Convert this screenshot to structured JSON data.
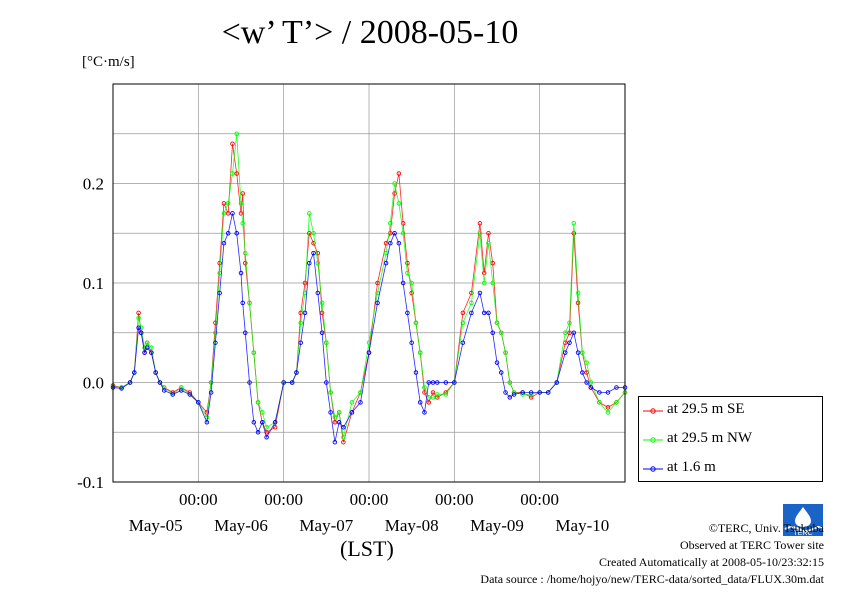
{
  "title": "<w’ T’> / 2008-05-10",
  "unit_label": "[°C·m/s]",
  "x_unit_label": "(LST)",
  "credits": {
    "copyright": "©TERC, Univ. Tsukuba",
    "observed": "Observed at TERC Tower site",
    "created": "Created Automatically at 2008-05-10/23:32:15",
    "source": "Data source : /home/hojyo/new/TERC-data/sorted_data/FLUX.30m.dat"
  },
  "logo_text": "TERC",
  "chart_data": {
    "type": "line",
    "title": "<w’ T’> / 2008-05-10",
    "ylabel": "[°C·m/s]",
    "xlabel": "(LST)",
    "ylim": [
      -0.1,
      0.3
    ],
    "xlim": [
      0,
      6
    ],
    "x_unit": "days from May-05 00:00 LST",
    "yticks": [
      -0.1,
      0.0,
      0.1,
      0.2
    ],
    "ytick_labels": [
      "-0.1",
      "0.0",
      "0.1",
      "0.2"
    ],
    "xticks": [
      1,
      2,
      3,
      4,
      5
    ],
    "xtick_time_labels": [
      "00:00",
      "00:00",
      "00:00",
      "00:00",
      "00:00"
    ],
    "date_labels": [
      {
        "x": 0.5,
        "label": "May-05"
      },
      {
        "x": 1.5,
        "label": "May-06"
      },
      {
        "x": 2.5,
        "label": "May-07"
      },
      {
        "x": 3.5,
        "label": "May-08"
      },
      {
        "x": 4.5,
        "label": "May-09"
      },
      {
        "x": 5.5,
        "label": "May-10"
      }
    ],
    "grid": true,
    "legend_position": "right-bottom outside",
    "series": [
      {
        "name": "at 29.5 m SE",
        "color": "#ff0000",
        "x": [
          0.0,
          0.1,
          0.2,
          0.25,
          0.3,
          0.33,
          0.37,
          0.4,
          0.45,
          0.5,
          0.55,
          0.6,
          0.7,
          0.8,
          0.9,
          1.0,
          1.1,
          1.15,
          1.2,
          1.25,
          1.3,
          1.35,
          1.4,
          1.45,
          1.5,
          1.52,
          1.55,
          1.6,
          1.65,
          1.7,
          1.75,
          1.8,
          1.9,
          2.0,
          2.1,
          2.15,
          2.2,
          2.25,
          2.3,
          2.35,
          2.4,
          2.45,
          2.5,
          2.55,
          2.6,
          2.65,
          2.7,
          2.8,
          2.9,
          3.0,
          3.1,
          3.2,
          3.25,
          3.3,
          3.35,
          3.4,
          3.45,
          3.5,
          3.55,
          3.6,
          3.65,
          3.7,
          3.75,
          3.8,
          3.9,
          4.0,
          4.1,
          4.2,
          4.3,
          4.35,
          4.4,
          4.45,
          4.5,
          4.55,
          4.6,
          4.65,
          4.7,
          4.8,
          4.9,
          5.0,
          5.1,
          5.2,
          5.3,
          5.35,
          5.4,
          5.45,
          5.5,
          5.55,
          5.6,
          5.7,
          5.8,
          5.9,
          6.0
        ],
        "y": [
          -0.003,
          -0.005,
          0.0,
          0.01,
          0.07,
          0.05,
          0.03,
          0.04,
          0.03,
          0.01,
          0.0,
          -0.005,
          -0.01,
          -0.005,
          -0.01,
          -0.02,
          -0.03,
          0.0,
          0.06,
          0.12,
          0.18,
          0.17,
          0.24,
          0.21,
          0.17,
          0.19,
          0.12,
          0.08,
          0.03,
          -0.02,
          -0.04,
          -0.05,
          -0.045,
          0.0,
          0.0,
          0.01,
          0.07,
          0.1,
          0.15,
          0.14,
          0.13,
          0.07,
          0.04,
          -0.01,
          -0.04,
          -0.03,
          -0.06,
          -0.03,
          -0.01,
          0.03,
          0.1,
          0.14,
          0.15,
          0.19,
          0.21,
          0.16,
          0.12,
          0.09,
          0.06,
          0.03,
          -0.01,
          -0.02,
          -0.01,
          -0.015,
          -0.01,
          0.0,
          0.07,
          0.09,
          0.16,
          0.11,
          0.15,
          0.12,
          0.06,
          0.05,
          0.03,
          0.0,
          -0.01,
          -0.01,
          -0.015,
          -0.01,
          -0.01,
          0.0,
          0.04,
          0.05,
          0.15,
          0.08,
          0.03,
          0.01,
          -0.005,
          -0.02,
          -0.025,
          -0.02,
          -0.01
        ]
      },
      {
        "name": "at 29.5 m NW",
        "color": "#00ff00",
        "x": [
          0.0,
          0.1,
          0.2,
          0.25,
          0.3,
          0.33,
          0.37,
          0.4,
          0.45,
          0.5,
          0.55,
          0.6,
          0.7,
          0.8,
          0.9,
          1.0,
          1.1,
          1.15,
          1.2,
          1.25,
          1.3,
          1.35,
          1.4,
          1.45,
          1.5,
          1.52,
          1.55,
          1.6,
          1.65,
          1.7,
          1.75,
          1.8,
          1.9,
          2.0,
          2.1,
          2.15,
          2.2,
          2.25,
          2.3,
          2.35,
          2.4,
          2.45,
          2.5,
          2.55,
          2.6,
          2.65,
          2.7,
          2.8,
          2.9,
          3.0,
          3.1,
          3.2,
          3.25,
          3.3,
          3.35,
          3.4,
          3.45,
          3.5,
          3.55,
          3.6,
          3.65,
          3.7,
          3.75,
          3.8,
          3.9,
          4.0,
          4.1,
          4.2,
          4.3,
          4.35,
          4.4,
          4.45,
          4.5,
          4.55,
          4.6,
          4.65,
          4.7,
          4.8,
          4.9,
          5.0,
          5.1,
          5.2,
          5.3,
          5.35,
          5.4,
          5.45,
          5.5,
          5.55,
          5.6,
          5.7,
          5.8,
          5.9,
          6.0
        ],
        "y": [
          -0.004,
          -0.005,
          0.0,
          0.01,
          0.065,
          0.055,
          0.035,
          0.04,
          0.035,
          0.01,
          0.0,
          -0.005,
          -0.012,
          -0.005,
          -0.012,
          -0.02,
          -0.035,
          0.0,
          0.05,
          0.11,
          0.17,
          0.18,
          0.21,
          0.25,
          0.18,
          0.16,
          0.13,
          0.08,
          0.03,
          -0.02,
          -0.03,
          -0.045,
          -0.04,
          0.0,
          0.0,
          0.01,
          0.06,
          0.09,
          0.17,
          0.15,
          0.12,
          0.08,
          0.04,
          -0.01,
          -0.035,
          -0.03,
          -0.055,
          -0.02,
          -0.01,
          0.04,
          0.09,
          0.13,
          0.16,
          0.2,
          0.18,
          0.15,
          0.11,
          0.1,
          0.06,
          0.03,
          -0.005,
          -0.015,
          -0.015,
          -0.012,
          -0.012,
          0.0,
          0.06,
          0.08,
          0.15,
          0.1,
          0.14,
          0.1,
          0.06,
          0.05,
          0.03,
          0.0,
          -0.01,
          -0.012,
          -0.012,
          -0.01,
          -0.01,
          0.0,
          0.05,
          0.06,
          0.16,
          0.09,
          0.03,
          0.02,
          0.0,
          -0.02,
          -0.03,
          -0.02,
          -0.01
        ]
      },
      {
        "name": "at 1.6 m",
        "color": "#0000ff",
        "x": [
          0.0,
          0.1,
          0.2,
          0.25,
          0.3,
          0.33,
          0.37,
          0.4,
          0.45,
          0.5,
          0.55,
          0.6,
          0.7,
          0.8,
          0.9,
          1.0,
          1.1,
          1.15,
          1.2,
          1.25,
          1.3,
          1.35,
          1.4,
          1.45,
          1.5,
          1.52,
          1.55,
          1.6,
          1.65,
          1.7,
          1.75,
          1.8,
          1.9,
          2.0,
          2.1,
          2.15,
          2.2,
          2.25,
          2.3,
          2.35,
          2.4,
          2.45,
          2.5,
          2.55,
          2.6,
          2.65,
          2.7,
          2.8,
          2.9,
          3.0,
          3.1,
          3.2,
          3.25,
          3.3,
          3.35,
          3.4,
          3.45,
          3.5,
          3.55,
          3.6,
          3.65,
          3.7,
          3.75,
          3.8,
          3.9,
          4.0,
          4.1,
          4.2,
          4.3,
          4.35,
          4.4,
          4.45,
          4.5,
          4.55,
          4.6,
          4.65,
          4.7,
          4.8,
          4.9,
          5.0,
          5.1,
          5.2,
          5.3,
          5.35,
          5.4,
          5.45,
          5.5,
          5.55,
          5.6,
          5.7,
          5.8,
          5.9,
          6.0
        ],
        "y": [
          -0.005,
          -0.006,
          0.0,
          0.01,
          0.055,
          0.05,
          0.03,
          0.035,
          0.03,
          0.01,
          0.0,
          -0.008,
          -0.012,
          -0.008,
          -0.012,
          -0.02,
          -0.04,
          -0.01,
          0.04,
          0.09,
          0.14,
          0.15,
          0.17,
          0.15,
          0.11,
          0.08,
          0.05,
          0.0,
          -0.04,
          -0.05,
          -0.04,
          -0.055,
          -0.04,
          0.0,
          0.0,
          0.01,
          0.04,
          0.07,
          0.12,
          0.13,
          0.09,
          0.05,
          0.0,
          -0.03,
          -0.06,
          -0.04,
          -0.045,
          -0.03,
          -0.02,
          0.03,
          0.08,
          0.12,
          0.14,
          0.15,
          0.14,
          0.1,
          0.07,
          0.04,
          0.01,
          -0.02,
          -0.03,
          0.0,
          0.0,
          0.0,
          0.0,
          0.0,
          0.04,
          0.07,
          0.09,
          0.07,
          0.07,
          0.05,
          0.02,
          0.01,
          -0.01,
          -0.015,
          -0.012,
          -0.01,
          -0.01,
          -0.01,
          -0.01,
          0.0,
          0.03,
          0.04,
          0.05,
          0.03,
          0.01,
          0.0,
          -0.005,
          -0.01,
          -0.01,
          -0.005,
          -0.005
        ]
      }
    ]
  }
}
